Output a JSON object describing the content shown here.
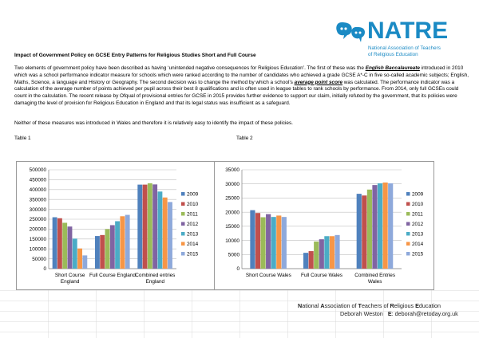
{
  "logo": {
    "wordmark": "NATRE",
    "subtitle_line1": "National Association of Teachers",
    "subtitle_line2": "of Religious Education",
    "color": "#1a8ac4",
    "icon": "speech-bubbles-icon"
  },
  "document": {
    "title": "Impact of Government Policy on GCSE Entry Patterns for Religious Studies Short and Full Course",
    "paragraph1": {
      "part1": "Two elements of government policy have been described as having ‘unintended negative consequences for Religious Education’. The first of these was the ",
      "emphasis1": "English Baccalaureate",
      "part2": " introduced in 2010 which was a school performance indicator measure for schools which were ranked according to the number of candidates who achieved a grade GCSE A*-C in five so-called academic subjects; English, Maths, Science, a language and History or Geography. The second decision was to change the method by which a school’s ",
      "emphasis2": "average point score",
      "part3": " was calculated. The performance indicator was a calculation of the average number of points achieved per pupil across their best 8 qualifications and is often used in league tables to rank schools by performance. From 2014, only full GCSEs could count in the calculation. The recent release by Ofqual of provisional entries for GCSE in 2015 provides further evidence to support our claim, initially refuted by the government, that its policies were damaging the level of provision for Religious Education in England and that its legal status was insufficient as a safeguard."
    },
    "paragraph2": "Neither of these measures was introduced in Wales and therefore it is relatively easy to identify the impact of these policies.",
    "table1_label": "Table 1",
    "table2_label": "Table 2"
  },
  "footer": {
    "line1_parts": [
      "N",
      "ational ",
      "A",
      "ssociation of ",
      "T",
      "eachers of ",
      "R",
      "eligious ",
      "E",
      "ducation"
    ],
    "line2_name": "Deborah Weston",
    "line2_label": "E",
    "line2_email": "deborah@retoday.org.uk"
  },
  "series_colors": [
    "#4f81bd",
    "#c0504d",
    "#9bbb59",
    "#8064a2",
    "#4bacc6",
    "#f79646",
    "#8ea9db"
  ],
  "chart_data": [
    {
      "type": "bar",
      "categories": [
        "Short Course England",
        "Full Course England",
        "Combined entries England"
      ],
      "category_lines": [
        [
          "Short Course",
          "England"
        ],
        [
          "Full Course England"
        ],
        [
          "Combined entries",
          "England"
        ]
      ],
      "series": [
        {
          "name": "2009",
          "values": [
            260000,
            165000,
            425000
          ]
        },
        {
          "name": "2010",
          "values": [
            255000,
            170000,
            425000
          ]
        },
        {
          "name": "2011",
          "values": [
            232000,
            200000,
            432000
          ]
        },
        {
          "name": "2012",
          "values": [
            213000,
            220000,
            426000
          ]
        },
        {
          "name": "2013",
          "values": [
            152000,
            240000,
            390000
          ]
        },
        {
          "name": "2014",
          "values": [
            102000,
            265000,
            360000
          ]
        },
        {
          "name": "2015",
          "values": [
            67000,
            272000,
            337000
          ]
        }
      ],
      "ylim": [
        0,
        500000
      ],
      "yticks": [
        "0",
        "50000",
        "100000",
        "150000",
        "200000",
        "250000",
        "300000",
        "350000",
        "400000",
        "450000",
        "500000"
      ],
      "grid": true,
      "legend": "right"
    },
    {
      "type": "bar",
      "categories": [
        "Short Course Wales",
        "Full Course Wales",
        "Combined Entries Wales"
      ],
      "category_lines": [
        [
          "Short Course Wales"
        ],
        [
          "Full Course Wales"
        ],
        [
          "Combined Entries",
          "Wales"
        ]
      ],
      "series": [
        {
          "name": "2009",
          "values": [
            20700,
            5600,
            26500
          ]
        },
        {
          "name": "2010",
          "values": [
            19700,
            6200,
            25900
          ]
        },
        {
          "name": "2011",
          "values": [
            18200,
            9600,
            28000
          ]
        },
        {
          "name": "2012",
          "values": [
            19300,
            10400,
            29600
          ]
        },
        {
          "name": "2013",
          "values": [
            18300,
            11500,
            30200
          ]
        },
        {
          "name": "2014",
          "values": [
            18800,
            11500,
            30500
          ]
        },
        {
          "name": "2015",
          "values": [
            18300,
            11900,
            30200
          ]
        }
      ],
      "ylim": [
        0,
        35000
      ],
      "yticks": [
        "0",
        "5000",
        "10000",
        "15000",
        "20000",
        "25000",
        "30000",
        "35000"
      ],
      "grid": true,
      "legend": "right"
    }
  ]
}
